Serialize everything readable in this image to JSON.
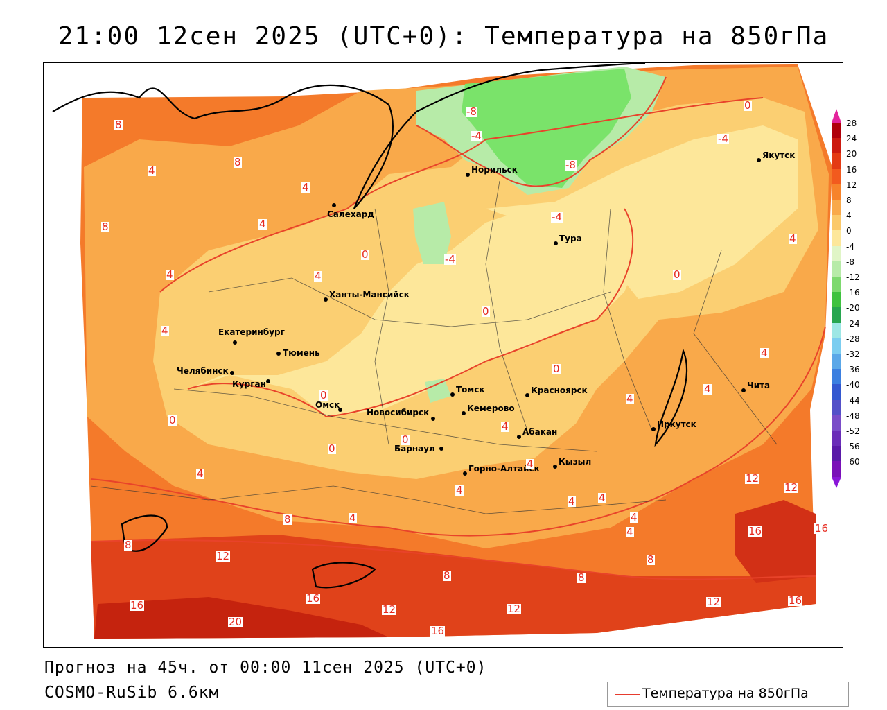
{
  "title": "21:00 12сен 2025 (UTC+0): Температура на 850гПа",
  "forecast_line": "Прогноз на 45ч. от 00:00 11сен 2025 (UTC+0)",
  "model_line": "COSMO-RuSib 6.6км",
  "legend": {
    "label": "Температура на 850гПа",
    "line_color": "#e63b2e"
  },
  "colorbar": {
    "labels": [
      "28",
      "24",
      "20",
      "16",
      "12",
      "8",
      "4",
      "0",
      "-4",
      "-8",
      "-12",
      "-16",
      "-20",
      "-24",
      "-28",
      "-32",
      "-36",
      "-40",
      "-44",
      "-48",
      "-52",
      "-56",
      "-60"
    ],
    "colors": [
      "#b0000b",
      "#cc1a10",
      "#e43a14",
      "#f25a1e",
      "#f7832a",
      "#f9a94a",
      "#fbc96a",
      "#fde79a",
      "#e0f5c6",
      "#b7eba8",
      "#7dd96e",
      "#3fc23f",
      "#27a64f",
      "#9de7e5",
      "#7bcdf0",
      "#5aa7e8",
      "#3b7fe0",
      "#3358d0",
      "#5450c8",
      "#7a4cc8",
      "#6a2db8",
      "#5a1aa8",
      "#7a10b8"
    ],
    "top_arrow_color": "#e4239c",
    "bottom_arrow_color": "#8a16d8"
  },
  "cities": [
    {
      "name": "Якутск"
    },
    {
      "name": "Норильск"
    },
    {
      "name": "Салехард"
    },
    {
      "name": "Тура"
    },
    {
      "name": "Ханты-Мансийск"
    },
    {
      "name": "Екатеринбург"
    },
    {
      "name": "Тюмень"
    },
    {
      "name": "Челябинск"
    },
    {
      "name": "Курган"
    },
    {
      "name": "Омск"
    },
    {
      "name": "Новосибирск"
    },
    {
      "name": "Томск"
    },
    {
      "name": "Красноярск"
    },
    {
      "name": "Кемерово"
    },
    {
      "name": "Барнаул"
    },
    {
      "name": "Абакан"
    },
    {
      "name": "Горно-Алтайск"
    },
    {
      "name": "Кызыл"
    },
    {
      "name": "Иркутск"
    },
    {
      "name": "Чита"
    }
  ],
  "isotherm_labels": [
    "8",
    "4",
    "8",
    "4",
    "4",
    "8",
    "4",
    "4",
    "4",
    "0",
    "4",
    "0",
    "-8",
    "-4",
    "-8",
    "-4",
    "-4",
    "0",
    "-4",
    "0",
    "4",
    "0",
    "0",
    "0",
    "4",
    "4",
    "4",
    "4",
    "4",
    "8",
    "12",
    "16",
    "16",
    "12",
    "8",
    "12",
    "16",
    "16",
    "12",
    "16",
    "20",
    "12",
    "8",
    "8",
    "12",
    "16",
    "4",
    "4",
    "4",
    "4",
    "4",
    "4",
    "8",
    "0",
    "0"
  ]
}
